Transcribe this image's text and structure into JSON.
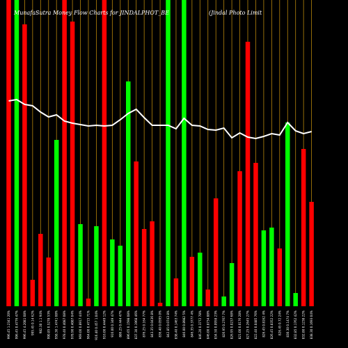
{
  "chart_data": {
    "type": "bar",
    "title": "MunafaSutra  Money  Flow  Charts for JINDALPHOT_BE",
    "subtitle": "(Jindal Photo  Limit",
    "ylim": [
      0,
      440
    ],
    "colors": {
      "up": "#00ff00",
      "down": "#ff0000",
      "line": "#ffffff",
      "grid": "#b8860b",
      "background": "#000000"
    },
    "bars": [
      {
        "label": "996.45 1.2341 20%",
        "value": 440,
        "dir": "down"
      },
      {
        "label": "996.45 0.4776 47%",
        "value": 440,
        "dir": "up"
      },
      {
        "label": "996.45 4.2081 08%",
        "value": 405,
        "dir": "down"
      },
      {
        "label": "995.45 0.14 62%",
        "value": 38,
        "dir": "down"
      },
      {
        "label": "982.30 1.1 94%",
        "value": 104,
        "dir": "down"
      },
      {
        "label": "990.85 0.5278 53%",
        "value": 70,
        "dir": "down"
      },
      {
        "label": "958.30 1.4741 08%",
        "value": 239,
        "dir": "up"
      },
      {
        "label": "978.40 0.4087 08%",
        "value": 440,
        "dir": "down"
      },
      {
        "label": "978.90 0.4087 04%",
        "value": 409,
        "dir": "down"
      },
      {
        "label": "969.00 0.8917 44%",
        "value": 118,
        "dir": "up"
      },
      {
        "label": "964.00 0.4715 71%",
        "value": 11,
        "dir": "down"
      },
      {
        "label": "916.40 0.457 1.04%",
        "value": 115,
        "dir": "up"
      },
      {
        "label": "916.00 0.4449 12%",
        "value": 440,
        "dir": "down"
      },
      {
        "label": "916.00 0.349 47%",
        "value": 96,
        "dir": "up"
      },
      {
        "label": "886.25 0.444 47%",
        "value": 87,
        "dir": "up"
      },
      {
        "label": "896.65 0.1598 08%",
        "value": 323,
        "dir": "up"
      },
      {
        "label": "837.30 0.1968 46%",
        "value": 208,
        "dir": "down"
      },
      {
        "label": "876.25 0.164 77%",
        "value": 111,
        "dir": "down"
      },
      {
        "label": "843.35 0.0436 8%",
        "value": 122,
        "dir": "down"
      },
      {
        "label": "836.40 0.0595 0%",
        "value": 5,
        "dir": "down"
      },
      {
        "label": "842.85 0.0743 8%",
        "value": 440,
        "dir": "up"
      },
      {
        "label": "838.40 0.1463 74%",
        "value": 40,
        "dir": "down"
      },
      {
        "label": "846.00 0.8982 5%",
        "value": 440,
        "dir": "up"
      },
      {
        "label": "846.35 0.3777 4%",
        "value": 71,
        "dir": "down"
      },
      {
        "label": "846.20 0.3772 78%",
        "value": 77,
        "dir": "up"
      },
      {
        "label": "846.00 0.8734 88%",
        "value": 24,
        "dir": "down"
      },
      {
        "label": "834.50 0.0958 23%",
        "value": 155,
        "dir": "down"
      },
      {
        "label": "826.95 0.2767 7%",
        "value": 14,
        "dir": "up"
      },
      {
        "label": "826.95 0.0237 68%",
        "value": 62,
        "dir": "up"
      },
      {
        "label": "821.00 0.0176 28%",
        "value": 194,
        "dir": "down"
      },
      {
        "label": "827.25 0.2645 27%",
        "value": 380,
        "dir": "down"
      },
      {
        "label": "822.40 0.0485 76%",
        "value": 206,
        "dir": "down"
      },
      {
        "label": "826.45 0.8162 4%",
        "value": 109,
        "dir": "up"
      },
      {
        "label": "826.45 0.8352 22%",
        "value": 113,
        "dir": "up"
      },
      {
        "label": "826.45 0.72 24%",
        "value": 83,
        "dir": "down"
      },
      {
        "label": "830.30 0.1474 7%",
        "value": 264,
        "dir": "up"
      },
      {
        "label": "832.85 0.1762 42%",
        "value": 19,
        "dir": "up"
      },
      {
        "label": "832.80 0.1238 22%",
        "value": 226,
        "dir": "down"
      },
      {
        "label": "838.30 0.1693 04%",
        "value": 150,
        "dir": "down"
      }
    ],
    "line": [
      295,
      297,
      290,
      288,
      279,
      272,
      275,
      266,
      263,
      261,
      259,
      260,
      259,
      260,
      268,
      277,
      283,
      271,
      260,
      260,
      260,
      255,
      270,
      260,
      259,
      254,
      253,
      256,
      242,
      249,
      243,
      241,
      244,
      248,
      246,
      264,
      252,
      248,
      251
    ]
  }
}
